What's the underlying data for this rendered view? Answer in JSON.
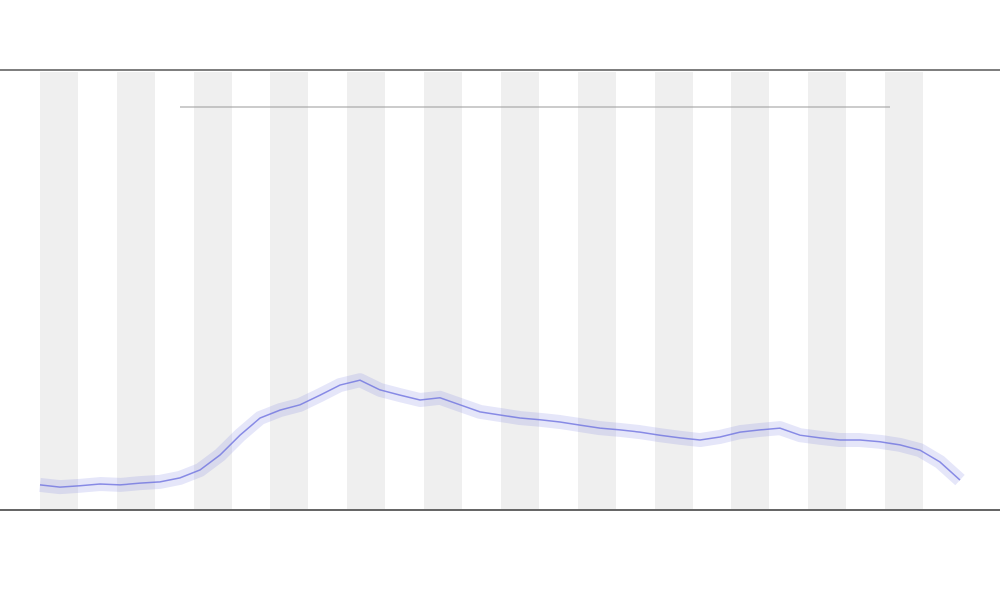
{
  "chart_data": {
    "type": "line",
    "color": "#6f73e0",
    "x": [
      0,
      1,
      2,
      3,
      4,
      5,
      6,
      7,
      8,
      9,
      10,
      11,
      12,
      13,
      14,
      15,
      16,
      17,
      18,
      19,
      20,
      21,
      22,
      23,
      24,
      25,
      26,
      27,
      28,
      29,
      30,
      31,
      32,
      33,
      34,
      35,
      36,
      37,
      38,
      39,
      40,
      41,
      42,
      43,
      44,
      45,
      46
    ],
    "values": [
      5.7,
      5.2,
      5.5,
      5.9,
      5.7,
      6.1,
      6.4,
      7.3,
      9.1,
      12.5,
      17.0,
      20.9,
      22.7,
      23.9,
      26.1,
      28.4,
      29.5,
      27.3,
      26.1,
      25.0,
      25.5,
      23.9,
      22.3,
      21.6,
      20.9,
      20.5,
      20.0,
      19.3,
      18.6,
      18.2,
      17.7,
      17.0,
      16.4,
      15.9,
      16.6,
      17.7,
      18.2,
      18.6,
      17.0,
      16.4,
      15.9,
      15.9,
      15.5,
      14.8,
      13.6,
      10.9,
      6.8
    ],
    "xlim": [
      0,
      46
    ],
    "ylim": [
      0,
      100
    ]
  }
}
